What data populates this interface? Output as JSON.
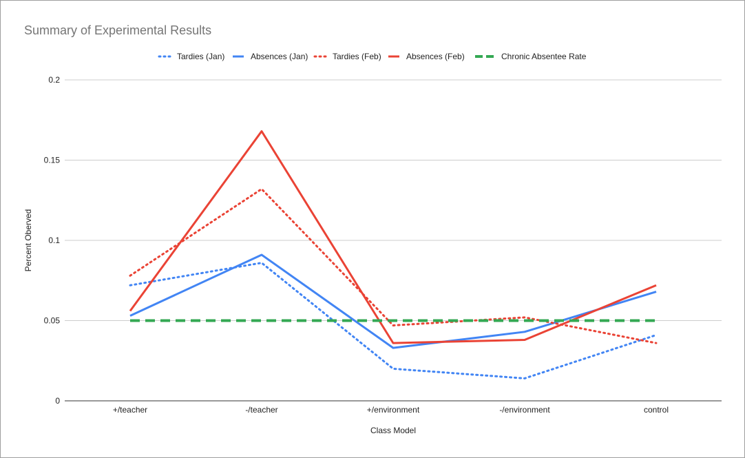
{
  "chart_data": {
    "type": "line",
    "title": "Summary of Experimental Results",
    "xlabel": "Class Model",
    "ylabel": "Percent Oberved",
    "categories": [
      "+/teacher",
      "-/teacher",
      "+/environment",
      "-/environment",
      "control"
    ],
    "ylim": [
      0,
      0.2
    ],
    "yticks": [
      0,
      0.05,
      0.1,
      0.15,
      0.2
    ],
    "ytick_labels": [
      "0",
      "0.05",
      "0.1",
      "0.15",
      "0.2"
    ],
    "grid": true,
    "legend_position": "top",
    "series": [
      {
        "name": "Tardies (Jan)",
        "values": [
          0.072,
          0.086,
          0.02,
          0.014,
          0.041
        ],
        "color": "#4285f4",
        "style": "dotted"
      },
      {
        "name": "Absences (Jan)",
        "values": [
          0.053,
          0.091,
          0.033,
          0.043,
          0.068
        ],
        "color": "#4285f4",
        "style": "solid"
      },
      {
        "name": "Tardies (Feb)",
        "values": [
          0.078,
          0.132,
          0.047,
          0.052,
          0.036
        ],
        "color": "#ea4335",
        "style": "dotted"
      },
      {
        "name": "Absences (Feb)",
        "values": [
          0.056,
          0.168,
          0.036,
          0.038,
          0.072
        ],
        "color": "#ea4335",
        "style": "solid"
      },
      {
        "name": "Chronic Absentee Rate",
        "values": [
          0.05,
          0.05,
          0.05,
          0.05,
          0.05
        ],
        "color": "#34a853",
        "style": "dashed"
      }
    ]
  }
}
